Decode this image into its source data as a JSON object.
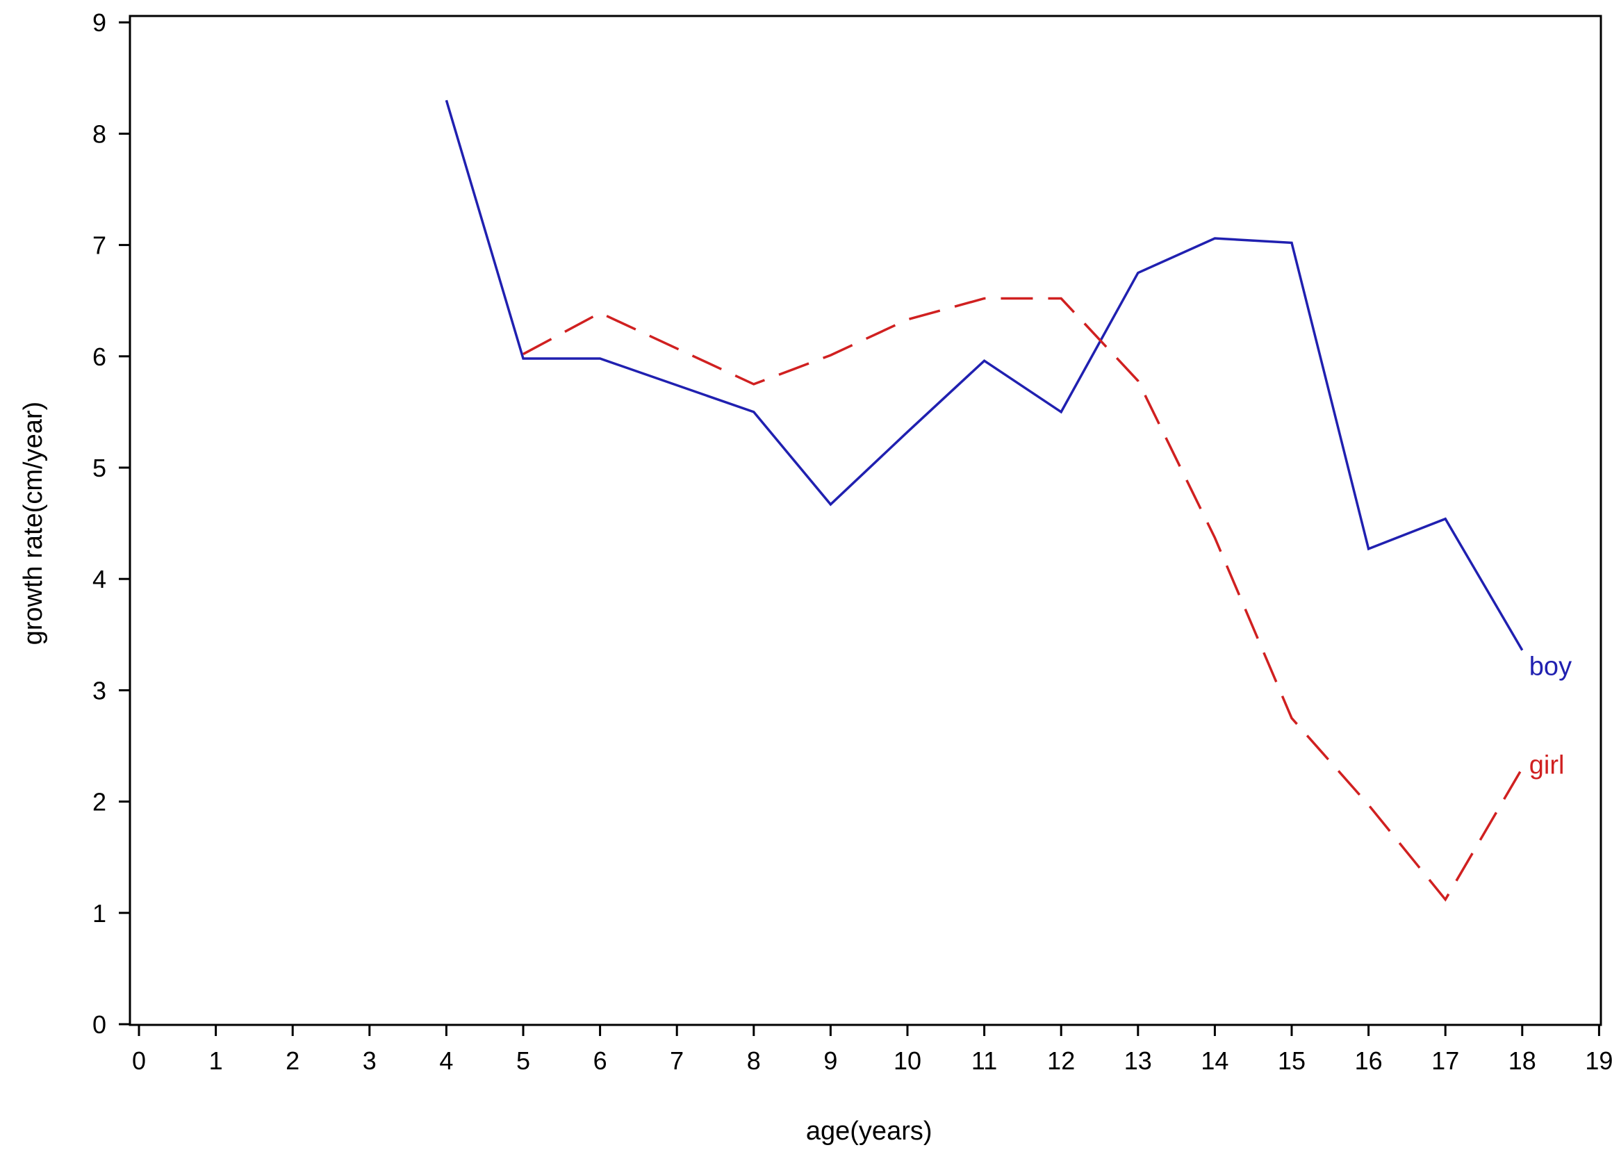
{
  "chart_data": {
    "type": "line",
    "title": "",
    "xlabel": "age(years)",
    "ylabel": "growth rate(cm/year)",
    "xlim": [
      0,
      19
    ],
    "ylim": [
      0,
      9
    ],
    "xticks": [
      0,
      1,
      2,
      3,
      4,
      5,
      6,
      7,
      8,
      9,
      10,
      11,
      12,
      13,
      14,
      15,
      16,
      17,
      18,
      19
    ],
    "yticks": [
      0,
      1,
      2,
      3,
      4,
      5,
      6,
      7,
      8,
      9
    ],
    "grid": false,
    "legend": "none",
    "series": [
      {
        "name": "boy",
        "color": "#2020b0",
        "style": "solid",
        "x": [
          4,
          5,
          6,
          8,
          9,
          10,
          11,
          12,
          13,
          14,
          15,
          16,
          17,
          18
        ],
        "y": [
          8.3,
          5.98,
          5.98,
          5.5,
          4.67,
          5.32,
          5.96,
          5.5,
          6.75,
          7.06,
          7.02,
          4.27,
          4.54,
          3.36
        ]
      },
      {
        "name": "girl",
        "color": "#d02020",
        "style": "dashed",
        "x": [
          5,
          6,
          8,
          9,
          10,
          11,
          12,
          13,
          14,
          15,
          16,
          17,
          18
        ],
        "y": [
          6.02,
          6.39,
          5.75,
          6.01,
          6.33,
          6.52,
          6.52,
          5.78,
          4.37,
          2.75,
          1.97,
          1.12,
          2.3
        ]
      }
    ]
  }
}
